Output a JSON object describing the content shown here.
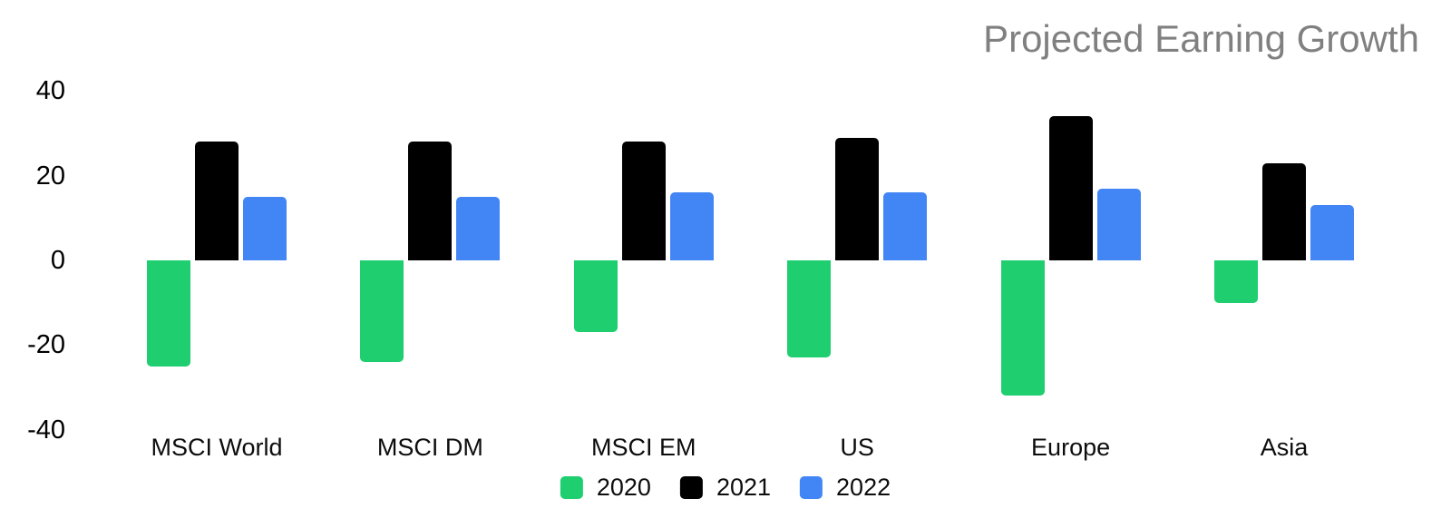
{
  "chart_data": {
    "type": "bar",
    "title": "Projected Earning Growth",
    "title_color": "#808080",
    "categories": [
      "MSCI World",
      "MSCI DM",
      "MSCI EM",
      "US",
      "Europe",
      "Asia"
    ],
    "series": [
      {
        "name": "2020",
        "color": "#1FCE6F",
        "values": [
          -25,
          -24,
          -17,
          -23,
          -32,
          -10
        ]
      },
      {
        "name": "2021",
        "color": "#000000",
        "values": [
          28,
          28,
          28,
          29,
          34,
          23
        ]
      },
      {
        "name": "2022",
        "color": "#4285F4",
        "values": [
          15,
          15,
          16,
          16,
          17,
          13
        ]
      }
    ],
    "xlabel": "",
    "ylabel": "",
    "y_axis": {
      "min": -40,
      "max": 40,
      "ticks": [
        40,
        20,
        0,
        -20,
        -40
      ]
    },
    "grid": false,
    "axis_line": false,
    "legend_position": "bottom-center",
    "background": "#ffffff"
  }
}
